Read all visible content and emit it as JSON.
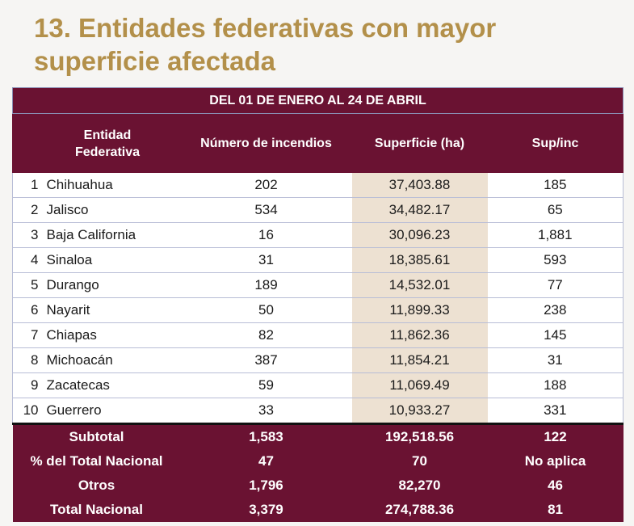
{
  "title": "13. Entidades federativas con mayor superficie afectada",
  "table": {
    "period": "DEL 01 DE ENERO AL 24 DE ABRIL",
    "headers": {
      "entidad": "Entidad Federativa",
      "incendios": "Número de incendios",
      "superficie": "Superficie (ha)",
      "supinc": "Sup/inc"
    },
    "rows": [
      {
        "rank": "1",
        "entidad": "Chihuahua",
        "incendios": "202",
        "superficie": "37,403.88",
        "supinc": "185"
      },
      {
        "rank": "2",
        "entidad": "Jalisco",
        "incendios": "534",
        "superficie": "34,482.17",
        "supinc": "65"
      },
      {
        "rank": "3",
        "entidad": "Baja California",
        "incendios": "16",
        "superficie": "30,096.23",
        "supinc": "1,881"
      },
      {
        "rank": "4",
        "entidad": "Sinaloa",
        "incendios": "31",
        "superficie": "18,385.61",
        "supinc": "593"
      },
      {
        "rank": "5",
        "entidad": "Durango",
        "incendios": "189",
        "superficie": "14,532.01",
        "supinc": "77"
      },
      {
        "rank": "6",
        "entidad": "Nayarit",
        "incendios": "50",
        "superficie": "11,899.33",
        "supinc": "238"
      },
      {
        "rank": "7",
        "entidad": "Chiapas",
        "incendios": "82",
        "superficie": "11,862.36",
        "supinc": "145"
      },
      {
        "rank": "8",
        "entidad": "Michoacán",
        "incendios": "387",
        "superficie": "11,854.21",
        "supinc": "31"
      },
      {
        "rank": "9",
        "entidad": "Zacatecas",
        "incendios": "59",
        "superficie": "11,069.49",
        "supinc": "188"
      },
      {
        "rank": "10",
        "entidad": "Guerrero",
        "incendios": "33",
        "superficie": "10,933.27",
        "supinc": "331"
      }
    ],
    "totals": [
      {
        "label": "Subtotal",
        "incendios": "1,583",
        "superficie": "192,518.56",
        "supinc": "122"
      },
      {
        "label": "% del Total Nacional",
        "incendios": "47",
        "superficie": "70",
        "supinc": "No aplica"
      },
      {
        "label": "Otros",
        "incendios": "1,796",
        "superficie": "82,270",
        "supinc": "46"
      },
      {
        "label": "Total Nacional",
        "incendios": "3,379",
        "superficie": "274,788.36",
        "supinc": "81"
      }
    ]
  }
}
